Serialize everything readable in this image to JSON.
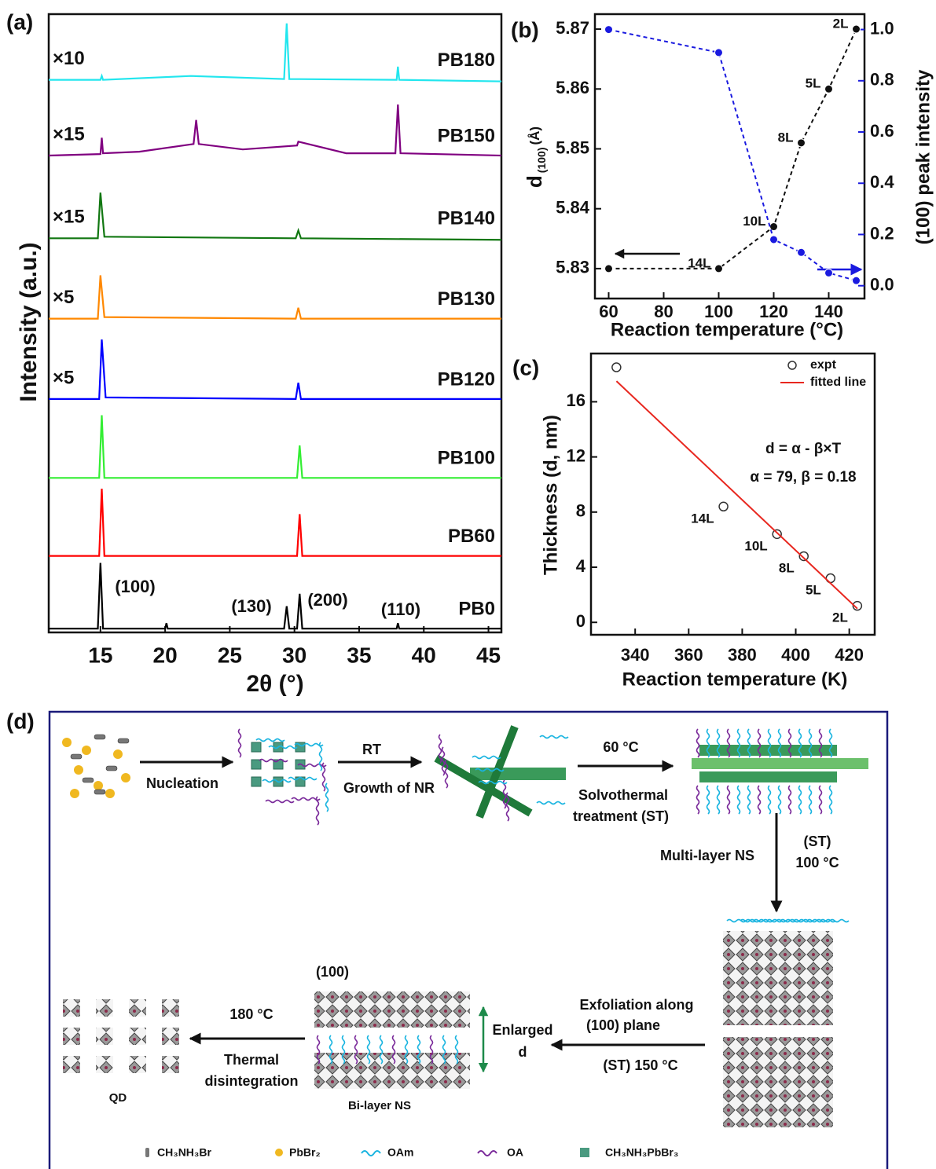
{
  "chart_data": [
    {
      "type": "line",
      "panel_label": "(a)",
      "xlabel": "2θ (°)",
      "ylabel": "Intensity (a.u.)",
      "xlim": [
        11,
        46
      ],
      "xticks": [
        15,
        20,
        25,
        30,
        35,
        40,
        45
      ],
      "ylim": [
        0,
        8
      ],
      "annotations": [
        "(100)",
        "(130)",
        "(200)",
        "(110)"
      ],
      "series": [
        {
          "name": "PB180",
          "multiplier": "×10",
          "color": "#22e6ee",
          "x": [
            11,
            15,
            15.1,
            15.2,
            22,
            29.2,
            29.4,
            29.6,
            37.9,
            38.0,
            38.1,
            46
          ],
          "values": [
            7.15,
            7.15,
            7.2,
            7.15,
            7.2,
            7.16,
            7.88,
            7.16,
            7.15,
            7.32,
            7.15,
            7.13
          ]
        },
        {
          "name": "PB150",
          "multiplier": "×15",
          "color": "#800080",
          "x": [
            11,
            15,
            15.1,
            15.2,
            18,
            22.2,
            22.4,
            22.6,
            26,
            30.2,
            30.3,
            34,
            37.8,
            38,
            38.2,
            46
          ],
          "values": [
            6.17,
            6.19,
            6.4,
            6.2,
            6.22,
            6.32,
            6.63,
            6.32,
            6.25,
            6.3,
            6.35,
            6.2,
            6.2,
            6.83,
            6.2,
            6.17
          ]
        },
        {
          "name": "PB140",
          "multiplier": "×15",
          "color": "#117711",
          "x": [
            11,
            14.8,
            15.0,
            15.3,
            30.1,
            30.3,
            30.5,
            46
          ],
          "values": [
            5.1,
            5.1,
            5.69,
            5.12,
            5.1,
            5.2,
            5.1,
            5.08
          ]
        },
        {
          "name": "PB130",
          "multiplier": "×5",
          "color": "#ff8800",
          "x": [
            11,
            14.8,
            15.0,
            15.3,
            30.1,
            30.3,
            30.5,
            46
          ],
          "values": [
            4.06,
            4.06,
            4.62,
            4.08,
            4.06,
            4.2,
            4.06,
            4.06
          ]
        },
        {
          "name": "PB120",
          "multiplier": "×5",
          "color": "#0000ff",
          "x": [
            11,
            14.9,
            15.1,
            15.4,
            30.1,
            30.3,
            30.5,
            46
          ],
          "values": [
            3.02,
            3.02,
            3.79,
            3.04,
            3.02,
            3.23,
            3.02,
            3.02
          ]
        },
        {
          "name": "PB100",
          "color": "#33ee33",
          "x": [
            11,
            14.9,
            15.1,
            15.3,
            30.2,
            30.4,
            30.6,
            46
          ],
          "values": [
            2.0,
            2.0,
            2.81,
            2.0,
            2.0,
            2.42,
            2.0,
            2.0
          ]
        },
        {
          "name": "PB60",
          "color": "#ff0000",
          "x": [
            11,
            14.9,
            15.1,
            15.3,
            30.2,
            30.4,
            30.6,
            46
          ],
          "values": [
            0.99,
            0.99,
            1.86,
            0.99,
            0.99,
            1.53,
            0.99,
            0.99
          ]
        },
        {
          "name": "PB0",
          "color": "#000000",
          "x": [
            11,
            14.8,
            15.0,
            15.2,
            20,
            20.1,
            20.2,
            29.2,
            29.4,
            29.6,
            30.2,
            30.4,
            30.6,
            37.9,
            38.0,
            38.1,
            46
          ],
          "values": [
            0.05,
            0.05,
            0.9,
            0.05,
            0.05,
            0.12,
            0.05,
            0.05,
            0.34,
            0.05,
            0.05,
            0.5,
            0.05,
            0.05,
            0.12,
            0.05,
            0.05
          ]
        }
      ],
      "mode": "lines"
    },
    {
      "type": "line",
      "panel_label": "(b)",
      "xlabel": "Reaction temperature (°C)",
      "ylabel": [
        "d",
        "(100)",
        "(Å)"
      ],
      "y2label": "(100) peak intensity",
      "xlim": [
        55,
        153
      ],
      "xticks": [
        60,
        80,
        100,
        120,
        140
      ],
      "ylim": [
        5.825,
        5.8725
      ],
      "yticks": [
        5.83,
        5.84,
        5.85,
        5.86,
        5.87
      ],
      "y2lim": [
        -0.05,
        1.06
      ],
      "y2ticks": [
        {
          "value": 0,
          "label": "0.0"
        },
        0.2,
        0.4,
        0.6,
        0.8,
        {
          "value": 1,
          "label": "1.0"
        }
      ],
      "x": [
        60,
        100,
        120,
        130,
        140,
        150
      ],
      "mode": "lines+markers",
      "linestyle": "dashed",
      "series": [
        {
          "color": "#111111",
          "values": [
            5.83,
            5.83,
            5.837,
            5.851,
            5.86,
            5.87
          ],
          "point_labels": [
            null,
            "14L",
            "10L",
            "8L",
            "5L",
            "2L"
          ]
        },
        {
          "color": "#1a1adf",
          "axis": "y2",
          "values": [
            1.0,
            0.91,
            0.18,
            0.13,
            0.05,
            0.02
          ]
        }
      ],
      "y2color": "#1a1adf"
    },
    {
      "type": "scatter",
      "panel_label": "(c)",
      "xlabel": "Reaction temperature (K)",
      "ylabel": "Thickness (d, nm)",
      "xlim": [
        323.5,
        429.5
      ],
      "xticks": [
        340,
        360,
        380,
        400,
        420
      ],
      "ylim": [
        -0.9,
        19.5
      ],
      "yticks": [
        0,
        4,
        8,
        12,
        16
      ],
      "legend": "upper right",
      "annotations": [
        "d = α - β×T",
        "α = 79, β = 0.18"
      ],
      "series": [
        {
          "name": "expt",
          "mode": "markers",
          "color": "#333333",
          "x": [
            333,
            373,
            393,
            403,
            413,
            423
          ],
          "values": [
            18.5,
            8.4,
            6.4,
            4.8,
            3.2,
            1.2
          ],
          "point_labels": [
            null,
            "14L",
            "10L",
            "8L",
            "5L",
            "2L"
          ]
        },
        {
          "name": "fitted line",
          "mode": "lines",
          "color": "#e8271f",
          "x": [
            333,
            423
          ],
          "values": [
            17.5,
            1.0
          ]
        }
      ]
    }
  ],
  "diagram": {
    "panel_label": "(d)",
    "labels": {
      "nucleation": "Nucleation",
      "rt": "RT",
      "growth": "Growth of NR",
      "temp60": "60 °C",
      "solvo1": "Solvothermal",
      "solvo2": "treatment (ST)",
      "multilayer": "Multi-layer NS",
      "st100a": "(ST)",
      "st100b": "100 °C",
      "plane100": "(100)",
      "temp180": "180 °C",
      "thermal1": "Thermal",
      "thermal2": "disintegration",
      "enlarged1": "Enlarged",
      "enlarged2": "d",
      "exfol1": "Exfoliation along",
      "exfol2": "(100) plane",
      "st150": "(ST) 150 °C",
      "qd": "QD",
      "bilayer": "Bi-layer NS"
    },
    "legend": [
      "CH₃NH₃Br",
      "PbBr₂",
      "OAm",
      "OA",
      "CH₃NH₃PbBr₃"
    ]
  }
}
